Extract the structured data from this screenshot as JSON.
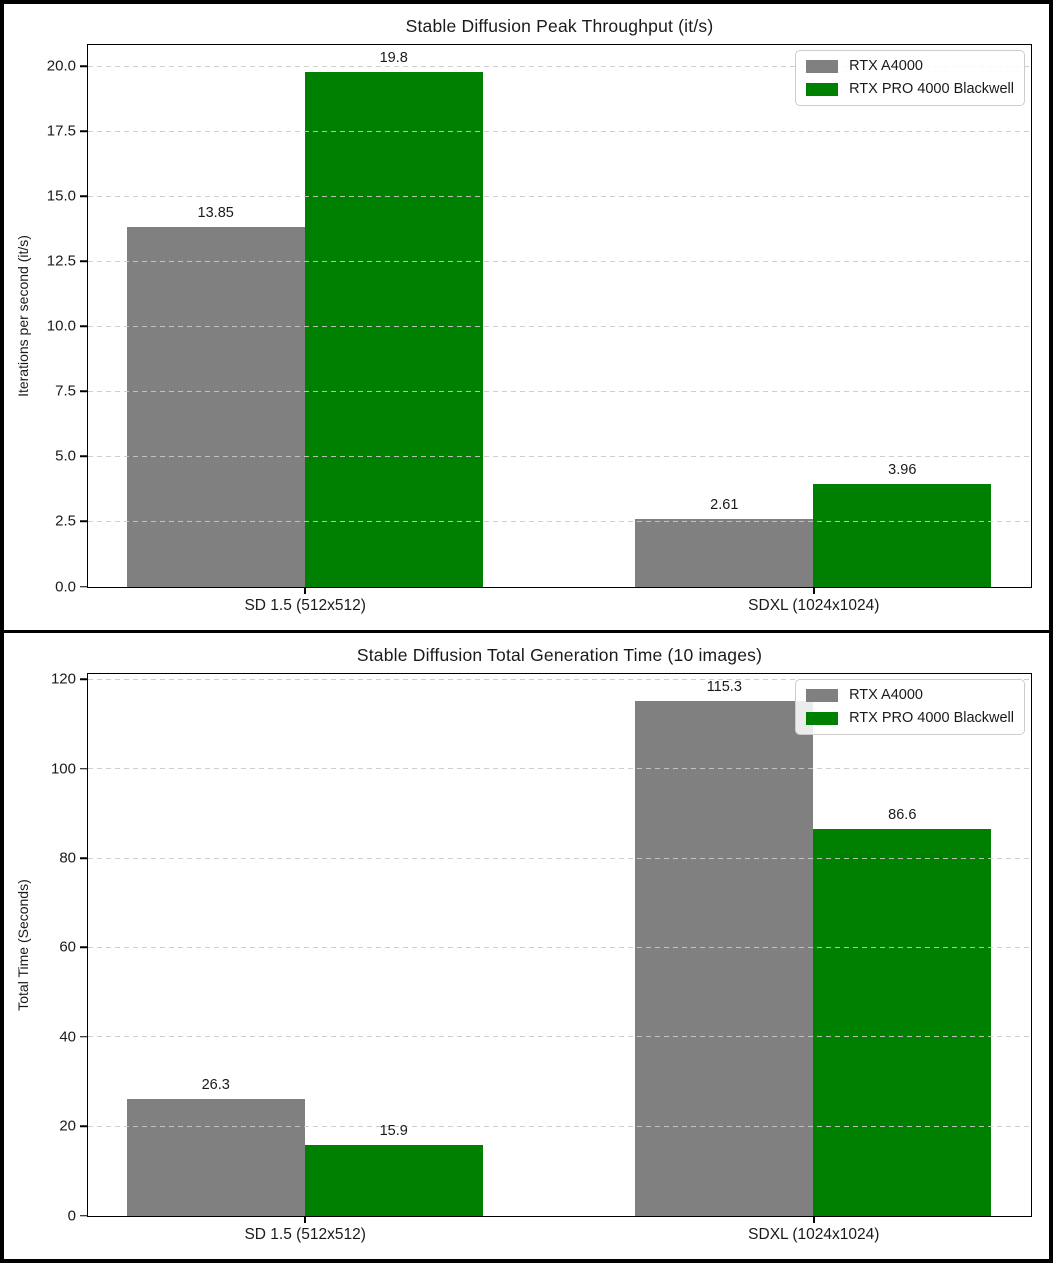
{
  "figure": {
    "background": "#ffffff",
    "border_color": "#000000"
  },
  "colors": {
    "bar_gray": "#808080",
    "bar_green": "#008000",
    "grid": "#c8c8c8",
    "spine": "#000000",
    "text": "#1a1a1a",
    "legend_border": "#cccccc"
  },
  "chart_data": [
    {
      "type": "bar",
      "title": "Stable Diffusion Peak Throughput (it/s)",
      "xlabel": "",
      "ylabel": "Iterations per second (it/s)",
      "categories": [
        "SD 1.5 (512x512)",
        "SDXL (1024x1024)"
      ],
      "series": [
        {
          "name": "RTX A4000",
          "color": "#808080",
          "values": [
            13.85,
            2.61
          ],
          "value_labels": [
            "13.85",
            "2.61"
          ]
        },
        {
          "name": "RTX PRO 4000 Blackwell",
          "color": "#008000",
          "values": [
            19.8,
            3.96
          ],
          "value_labels": [
            "19.8",
            "3.96"
          ]
        }
      ],
      "ylim": [
        0,
        20.79
      ],
      "yticks": {
        "values": [
          0,
          2.5,
          5,
          7.5,
          10,
          12.5,
          15,
          17.5,
          20
        ],
        "labels": [
          "0.0",
          "2.5",
          "5.0",
          "7.5",
          "10.0",
          "12.5",
          "15.0",
          "17.5",
          "20.0"
        ]
      },
      "grid": "horizontal-dashed",
      "legend_position": "upper-right"
    },
    {
      "type": "bar",
      "title": "Stable Diffusion Total Generation Time (10 images)",
      "xlabel": "",
      "ylabel": "Total Time (Seconds)",
      "categories": [
        "SD 1.5 (512x512)",
        "SDXL (1024x1024)"
      ],
      "series": [
        {
          "name": "RTX A4000",
          "color": "#808080",
          "values": [
            26.3,
            115.3
          ],
          "value_labels": [
            "26.3",
            "115.3"
          ]
        },
        {
          "name": "RTX PRO 4000 Blackwell",
          "color": "#008000",
          "values": [
            15.9,
            86.6
          ],
          "value_labels": [
            "15.9",
            "86.6"
          ]
        }
      ],
      "ylim": [
        0,
        121.07
      ],
      "yticks": {
        "values": [
          0,
          20,
          40,
          60,
          80,
          100,
          120
        ],
        "labels": [
          "0",
          "20",
          "40",
          "60",
          "80",
          "100",
          "120"
        ]
      },
      "grid": "horizontal-dashed",
      "legend_position": "upper-right"
    }
  ]
}
